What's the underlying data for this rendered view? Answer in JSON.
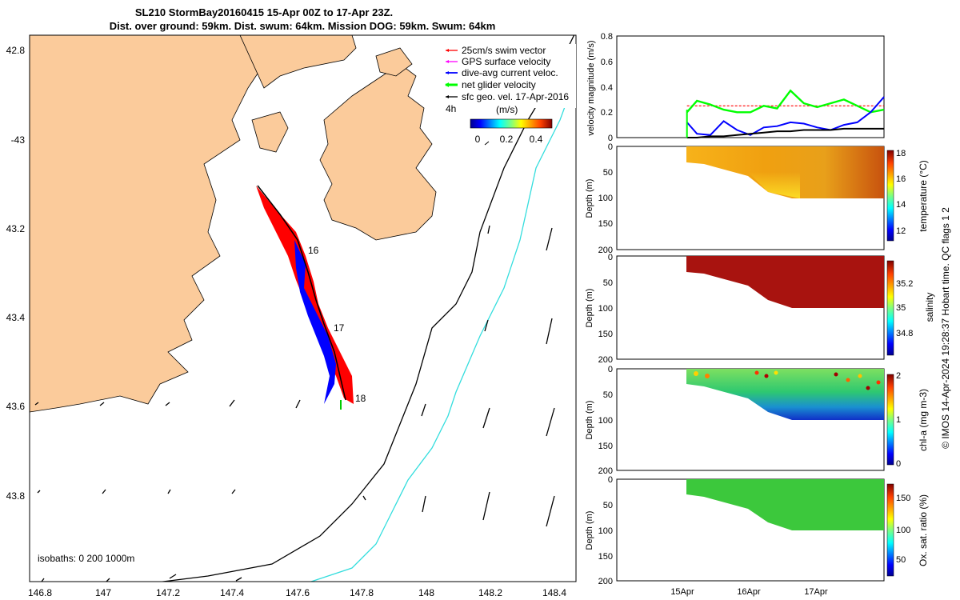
{
  "title": {
    "line1": "SL210 StormBay20160415 15-Apr 00Z to 17-Apr 23Z.",
    "line2": "Dist. over ground: 59km. Dist. swum: 64km. Mission DOG: 59km. Swum: 64km"
  },
  "colors": {
    "land": "#fbcb9b",
    "swim": "#ff0000",
    "gps": "#ff00ff",
    "dive_avg": "#0000ff",
    "net": "#00ff00",
    "sfc_geo": "#000000",
    "isobath_200": "#000000",
    "isobath_1000": "#33dddd"
  },
  "map": {
    "legend": [
      {
        "label": "25cm/s swim vector",
        "color": "#ff0000"
      },
      {
        "label": "GPS surface velocity",
        "color": "#ff00ff"
      },
      {
        "label": "dive-avg current veloc.",
        "color": "#0000ff"
      },
      {
        "label": "net glider velocity",
        "color": "#00ff00"
      },
      {
        "label": "sfc geo. vel. 17-Apr-2016",
        "color": "#000000"
      }
    ],
    "time_label": "4h",
    "colorbar_label": "(m/s)",
    "colorbar_ticks": [
      "0",
      "0.2",
      "0.4"
    ],
    "isobaths_label": "isobaths: 0   200  1000m",
    "day_labels": [
      "16",
      "17",
      "18"
    ],
    "lon_ticks": [
      "146.8",
      "147",
      "147.2",
      "147.4",
      "147.6",
      "147.8",
      "148",
      "148.2",
      "148.4"
    ],
    "lat_ticks": [
      "42.8",
      "-43",
      "43.2",
      "43.4",
      "43.6",
      "43.8"
    ]
  },
  "panels": {
    "time_ticks": [
      "15Apr",
      "16Apr",
      "17Apr"
    ],
    "depth_ticks": [
      "0",
      "50",
      "100",
      "150",
      "200"
    ],
    "depth_label": "Depth (m)",
    "velocity": {
      "ylabel": "velocity magnitude (m/s)",
      "yticks": [
        "0",
        "0.2",
        "0.4",
        "0.6",
        "0.8"
      ]
    },
    "temperature": {
      "label": "temperature (°C)",
      "ticks": [
        "12",
        "14",
        "16",
        "18"
      ]
    },
    "salinity": {
      "label": "salinity",
      "ticks": [
        "34.8",
        "35",
        "35.2"
      ]
    },
    "chla": {
      "label": "chl-a (mg m-3)",
      "ticks": [
        "0",
        "1",
        "2"
      ]
    },
    "oxygen": {
      "label": "Ox. sat. ratio (%)",
      "ticks": [
        "50",
        "100",
        "150"
      ]
    },
    "side_note": "© IMOS 14-Apr-2024 19:28:37 Hobart time. QC flags 1  2"
  },
  "chart_data": [
    {
      "type": "line",
      "title": "velocity magnitude (m/s)",
      "xlabel": "",
      "ylabel": "velocity magnitude (m/s)",
      "x": [
        15.05,
        15.2,
        15.4,
        15.6,
        15.8,
        16.0,
        16.2,
        16.4,
        16.6,
        16.8,
        17.0,
        17.2,
        17.4,
        17.6,
        17.8,
        18.0
      ],
      "ylim": [
        0,
        0.8
      ],
      "series": [
        {
          "name": "25cm/s swim vector",
          "values": [
            0.25,
            0.25,
            0.25,
            0.25,
            0.25,
            0.25,
            0.25,
            0.25,
            0.25,
            0.25,
            0.25,
            0.25,
            0.25,
            0.25,
            0.25,
            0.25
          ]
        },
        {
          "name": "net glider velocity",
          "values": [
            0.2,
            0.29,
            0.26,
            0.22,
            0.2,
            0.2,
            0.25,
            0.23,
            0.37,
            0.27,
            0.24,
            0.27,
            0.3,
            0.25,
            0.2,
            0.22
          ]
        },
        {
          "name": "dive-avg current veloc.",
          "values": [
            0.12,
            0.03,
            0.02,
            0.13,
            0.06,
            0.02,
            0.08,
            0.09,
            0.12,
            0.11,
            0.08,
            0.06,
            0.1,
            0.12,
            0.2,
            0.32
          ]
        },
        {
          "name": "sfc geo. vel. 17-Apr-2016",
          "values": [
            0.0,
            0.0,
            0.01,
            0.01,
            0.02,
            0.03,
            0.04,
            0.05,
            0.05,
            0.06,
            0.06,
            0.06,
            0.07,
            0.07,
            0.07,
            0.07
          ]
        }
      ]
    },
    {
      "type": "heatmap",
      "title": "temperature (°C)",
      "ylabel": "Depth (m)",
      "ylim": [
        200,
        0
      ],
      "clim": [
        11,
        18
      ],
      "x": [
        15.05,
        16.0,
        16.4,
        17.0,
        18.0
      ],
      "max_depth": [
        30,
        60,
        100,
        100,
        100
      ]
    },
    {
      "type": "heatmap",
      "title": "salinity",
      "ylabel": "Depth (m)",
      "ylim": [
        200,
        0
      ],
      "clim": [
        34.7,
        35.3
      ],
      "x": [
        15.05,
        16.0,
        16.4,
        17.0,
        18.0
      ],
      "max_depth": [
        30,
        60,
        100,
        100,
        100
      ]
    },
    {
      "type": "heatmap",
      "title": "chl-a (mg m-3)",
      "ylabel": "Depth (m)",
      "ylim": [
        200,
        0
      ],
      "clim": [
        0,
        2
      ],
      "x": [
        15.05,
        16.0,
        16.4,
        17.0,
        18.0
      ],
      "max_depth": [
        30,
        60,
        100,
        100,
        100
      ]
    },
    {
      "type": "heatmap",
      "title": "Ox. sat. ratio (%)",
      "ylabel": "Depth (m)",
      "ylim": [
        200,
        0
      ],
      "clim": [
        20,
        170
      ],
      "x": [
        15.05,
        16.0,
        16.4,
        17.0,
        18.0
      ],
      "max_depth": [
        30,
        60,
        100,
        100,
        100
      ]
    }
  ]
}
